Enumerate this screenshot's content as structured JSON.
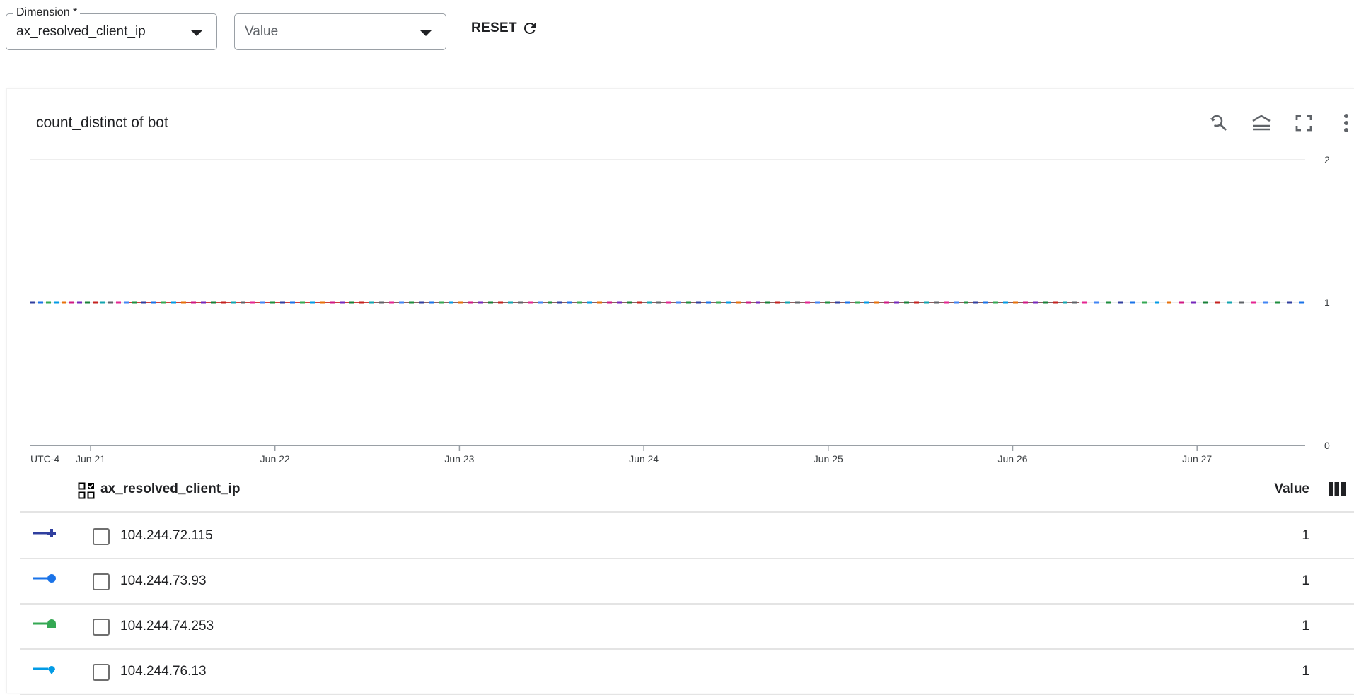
{
  "filters": {
    "dimension_label": "Dimension *",
    "dimension_value": "ax_resolved_client_ip",
    "value_placeholder": "Value",
    "reset_label": "RESET"
  },
  "chart_data": {
    "type": "line",
    "title": "count_distinct of bot",
    "timezone_label": "UTC-4",
    "x_ticks": [
      "Jun 21",
      "Jun 22",
      "Jun 23",
      "Jun 24",
      "Jun 25",
      "Jun 26",
      "Jun 27"
    ],
    "y_ticks": [
      "0",
      "1",
      "2"
    ],
    "ylim": [
      0,
      2
    ],
    "grid": true,
    "y_axis_side": "right",
    "note_values": "all series constant at 1 across the range",
    "series": [
      {
        "name": "104.244.72.115",
        "value": 1,
        "color": "#303f9f"
      },
      {
        "name": "104.244.73.93",
        "value": 1,
        "color": "#1a73e8"
      },
      {
        "name": "104.244.74.253",
        "value": 1,
        "color": "#34a853"
      },
      {
        "name": "104.244.76.13",
        "value": 1,
        "color": "#039be5"
      }
    ],
    "palette": [
      "#303f9f",
      "#1a73e8",
      "#34a853",
      "#039be5",
      "#e8710a",
      "#d01884",
      "#7627bb",
      "#188038",
      "#c5221f",
      "#12a4af",
      "#5f6368",
      "#e52592",
      "#4285f4",
      "#1e8e3e"
    ]
  },
  "table": {
    "dimension_header": "ax_resolved_client_ip",
    "value_header": "Value",
    "rows": [
      {
        "ip": "104.244.72.115",
        "value": "1"
      },
      {
        "ip": "104.244.73.93",
        "value": "1"
      },
      {
        "ip": "104.244.74.253",
        "value": "1"
      },
      {
        "ip": "104.244.76.13",
        "value": "1"
      }
    ]
  },
  "icons": {
    "toolbar": [
      "zoom-reset-icon",
      "legend-toggle-icon",
      "fullscreen-icon",
      "more-vert-icon"
    ]
  }
}
